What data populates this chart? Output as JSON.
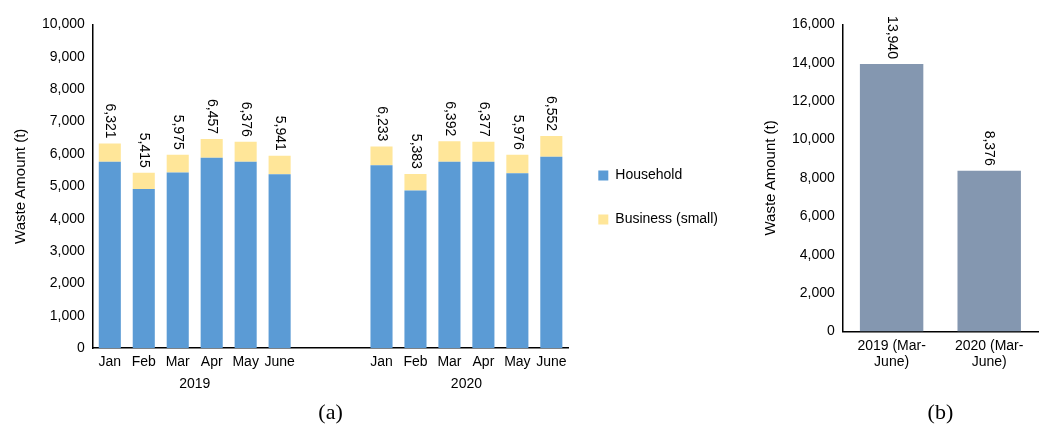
{
  "chart_data": [
    {
      "type": "bar",
      "stacked": true,
      "ylabel": "Waste Amount (t)",
      "categories": [
        "Jan",
        "Feb",
        "Mar",
        "Apr",
        "May",
        "June",
        null,
        null,
        "Jan",
        "Feb",
        "Mar",
        "Apr",
        "May",
        "June"
      ],
      "series": [
        {
          "name": "Household",
          "color": "#5b9bd5",
          "values": [
            5760,
            4920,
            5430,
            5880,
            5760,
            5370,
            null,
            null,
            5650,
            4870,
            5760,
            5760,
            5400,
            5910
          ]
        },
        {
          "name": "Business (small)",
          "color": "#ffe699",
          "values": [
            561,
            495,
            545,
            577,
            616,
            571,
            null,
            null,
            583,
            513,
            632,
            617,
            576,
            642
          ]
        }
      ],
      "totals": [
        "6,321",
        "5,415",
        "5,975",
        "6,457",
        "6,376",
        "5,941",
        null,
        null,
        "6,233",
        "5,383",
        "6,392",
        "6,377",
        "5,976",
        "6,552"
      ],
      "ylim": [
        0,
        10000
      ],
      "yticks": [
        0,
        {
          "value": 1000,
          "label": "1,000"
        },
        {
          "value": 2000,
          "label": "2,000"
        },
        {
          "value": 3000,
          "label": "3,000"
        },
        {
          "value": 4000,
          "label": "4,000"
        },
        {
          "value": 5000,
          "label": "5,000"
        },
        {
          "value": 6000,
          "label": "6,000"
        },
        {
          "value": 7000,
          "label": "7,000"
        },
        {
          "value": 8000,
          "label": "8,000"
        },
        {
          "value": 9000,
          "label": "9,000"
        },
        {
          "value": 10000,
          "label": "10,000"
        }
      ],
      "grid": false,
      "legend": "right",
      "annotations": [
        "2019",
        "2020",
        "(a)"
      ]
    },
    {
      "type": "bar",
      "ylabel": "Waste Amount (t)",
      "categories": [
        "2019 (Mar-June)",
        "2020 (Mar-June)"
      ],
      "values": [
        13940,
        8376
      ],
      "value_labels": [
        "13,940",
        "8,376"
      ],
      "color": "#8497b0",
      "ylim": [
        0,
        16000
      ],
      "yticks": [
        0,
        {
          "value": 2000,
          "label": "2,000"
        },
        {
          "value": 4000,
          "label": "4,000"
        },
        {
          "value": 6000,
          "label": "6,000"
        },
        {
          "value": 8000,
          "label": "8,000"
        },
        {
          "value": 10000,
          "label": "10,000"
        },
        {
          "value": 12000,
          "label": "12,000"
        },
        {
          "value": 14000,
          "label": "14,000"
        },
        {
          "value": 16000,
          "label": "16,000"
        }
      ],
      "grid": false,
      "legend": false,
      "annotations": [
        "(b)"
      ]
    }
  ]
}
